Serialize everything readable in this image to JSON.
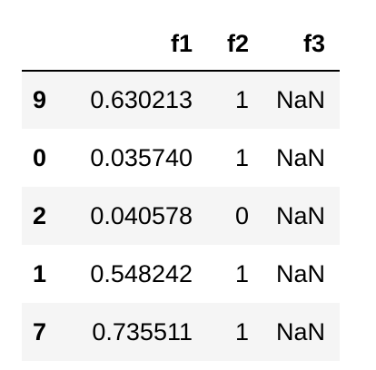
{
  "table": {
    "columns": [
      "",
      "f1",
      "f2",
      "f3"
    ],
    "rows": [
      {
        "index": "9",
        "f1": "0.630213",
        "f2": "1",
        "f3": "NaN"
      },
      {
        "index": "0",
        "f1": "0.035740",
        "f2": "1",
        "f3": "NaN"
      },
      {
        "index": "2",
        "f1": "0.040578",
        "f2": "0",
        "f3": "NaN"
      },
      {
        "index": "1",
        "f1": "0.548242",
        "f2": "1",
        "f3": "NaN"
      },
      {
        "index": "7",
        "f1": "0.735511",
        "f2": "1",
        "f3": "NaN"
      }
    ]
  },
  "colors": {
    "row_stripe": "#f5f5f5",
    "header_rule": "#000000"
  }
}
